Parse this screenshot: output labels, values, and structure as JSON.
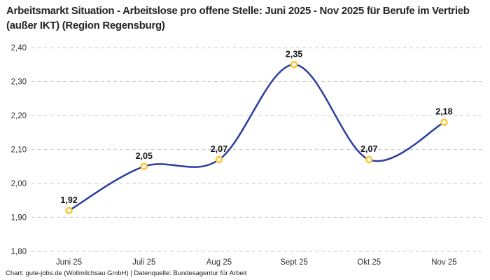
{
  "header": {
    "title": "Arbeitsmarkt Situation - Arbeitslose pro offene Stelle: Juni 2025 - Nov 2025 für Berufe im Vertrieb (außer IKT) (Region Regensburg)"
  },
  "footer": {
    "credit": "Chart: gute-jobs.de (Wollmilchsau GmbH) | Datenquelle: Bundesagentur für Arbeit"
  },
  "chart_data": {
    "type": "line",
    "title": "Arbeitsmarkt Situation - Arbeitslose pro offene Stelle: Juni 2025 - Nov 2025 für Berufe im Vertrieb (außer IKT) (Region Regensburg)",
    "categories": [
      "Juni 25",
      "Juli 25",
      "Aug 25",
      "Sept 25",
      "Okt 25",
      "Nov 25"
    ],
    "values": [
      1.92,
      2.05,
      2.07,
      2.35,
      2.07,
      2.18
    ],
    "point_labels": [
      "1,92",
      "2,05",
      "2,07",
      "2,35",
      "2,07",
      "2,18"
    ],
    "y_tick_values": [
      1.8,
      1.9,
      2.0,
      2.1,
      2.2,
      2.3,
      2.4
    ],
    "y_tick_labels": [
      "1,80",
      "1,90",
      "2,00",
      "2,10",
      "2,20",
      "2,30",
      "2,40"
    ],
    "ylim": [
      1.8,
      2.4
    ],
    "xlabel": "",
    "ylabel": "",
    "grid": "horizontal-dashed",
    "legend": "none",
    "line_style": "smooth-spline",
    "colors": {
      "line": "#2a3f9c",
      "marker_stroke": "#fcc52e",
      "marker_fill": "#ffffff",
      "grid": "#cbcbcb",
      "title_text": "#262626",
      "tick_text": "#333333",
      "value_text": "#141414"
    }
  }
}
